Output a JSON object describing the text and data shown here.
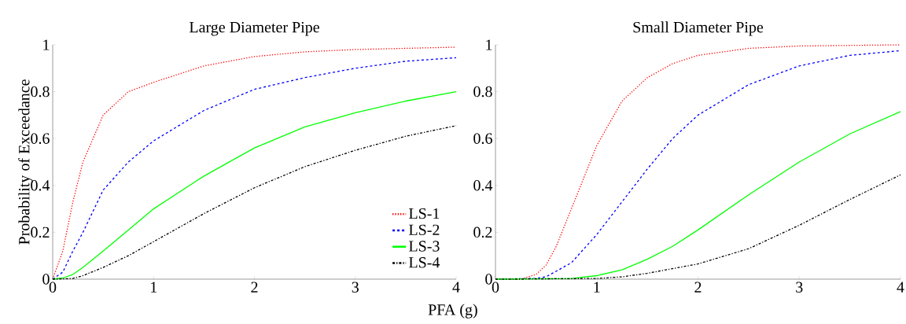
{
  "chart_data": [
    {
      "type": "line",
      "title": "Large Diameter Pipe",
      "xlabel": "PFA (g)",
      "ylabel": "Probability of Exceedance",
      "xlim": [
        0,
        4
      ],
      "ylim": [
        0,
        1
      ],
      "xticks": [
        0,
        1,
        2,
        3,
        4
      ],
      "yticks": [
        0,
        0.2,
        0.4,
        0.6,
        0.8,
        1
      ],
      "legend": "bottom right",
      "grid": false,
      "series": [
        {
          "name": "LS-1",
          "color": "#ff0000",
          "line_style": "dotted",
          "x": [
            0,
            0.1,
            0.2,
            0.3,
            0.5,
            0.75,
            1,
            1.5,
            2,
            2.5,
            3,
            4
          ],
          "values": [
            0,
            0.12,
            0.33,
            0.5,
            0.7,
            0.8,
            0.84,
            0.91,
            0.95,
            0.97,
            0.98,
            0.99
          ]
        },
        {
          "name": "LS-2",
          "color": "#0000ff",
          "line_style": "dashed",
          "x": [
            0,
            0.1,
            0.2,
            0.3,
            0.5,
            0.75,
            1,
            1.5,
            2,
            2.5,
            3,
            3.5,
            4
          ],
          "values": [
            0,
            0.03,
            0.12,
            0.2,
            0.38,
            0.5,
            0.59,
            0.72,
            0.81,
            0.86,
            0.9,
            0.93,
            0.945
          ]
        },
        {
          "name": "LS-3",
          "color": "#00ff00",
          "line_style": "solid",
          "x": [
            0,
            0.1,
            0.2,
            0.3,
            0.5,
            0.75,
            1,
            1.5,
            2,
            2.5,
            3,
            3.5,
            4
          ],
          "values": [
            0,
            0.005,
            0.02,
            0.05,
            0.12,
            0.21,
            0.3,
            0.44,
            0.56,
            0.65,
            0.71,
            0.76,
            0.8
          ]
        },
        {
          "name": "LS-4",
          "color": "#000000",
          "line_style": "dashdot",
          "x": [
            0,
            0.2,
            0.3,
            0.5,
            0.75,
            1,
            1.5,
            2,
            2.5,
            3,
            3.5,
            4
          ],
          "values": [
            0,
            0.003,
            0.015,
            0.05,
            0.1,
            0.16,
            0.28,
            0.39,
            0.48,
            0.55,
            0.61,
            0.655
          ]
        }
      ]
    },
    {
      "type": "line",
      "title": "Small Diameter Pipe",
      "xlim": [
        0,
        4
      ],
      "ylim": [
        0,
        1
      ],
      "xticks": [
        0,
        1,
        2,
        3,
        4
      ],
      "yticks": [
        0,
        0.2,
        0.4,
        0.6,
        0.8,
        1
      ],
      "grid": false,
      "series": [
        {
          "color": "#ff0000",
          "line_style": "dotted",
          "x": [
            0,
            0.25,
            0.4,
            0.5,
            0.6,
            0.75,
            1,
            1.25,
            1.5,
            1.75,
            2,
            2.5,
            3,
            4
          ],
          "values": [
            0,
            0,
            0.02,
            0.06,
            0.14,
            0.3,
            0.57,
            0.76,
            0.86,
            0.92,
            0.955,
            0.985,
            0.995,
            1
          ]
        },
        {
          "color": "#0000ff",
          "line_style": "dashed",
          "x": [
            0,
            0.4,
            0.5,
            0.75,
            1,
            1.25,
            1.5,
            1.75,
            2,
            2.5,
            3,
            3.5,
            4
          ],
          "values": [
            0,
            0.003,
            0.01,
            0.07,
            0.19,
            0.33,
            0.47,
            0.6,
            0.7,
            0.83,
            0.91,
            0.955,
            0.975
          ]
        },
        {
          "color": "#00ff00",
          "line_style": "solid",
          "x": [
            0,
            0.75,
            1,
            1.25,
            1.5,
            1.75,
            2,
            2.5,
            3,
            3.5,
            4
          ],
          "values": [
            0,
            0.003,
            0.015,
            0.04,
            0.085,
            0.14,
            0.21,
            0.36,
            0.5,
            0.62,
            0.715
          ]
        },
        {
          "color": "#000000",
          "line_style": "dashdot",
          "x": [
            0,
            1,
            1.25,
            1.5,
            1.75,
            2,
            2.5,
            3,
            3.5,
            4
          ],
          "values": [
            0,
            0.003,
            0.01,
            0.025,
            0.045,
            0.065,
            0.13,
            0.23,
            0.34,
            0.445
          ]
        }
      ]
    }
  ]
}
